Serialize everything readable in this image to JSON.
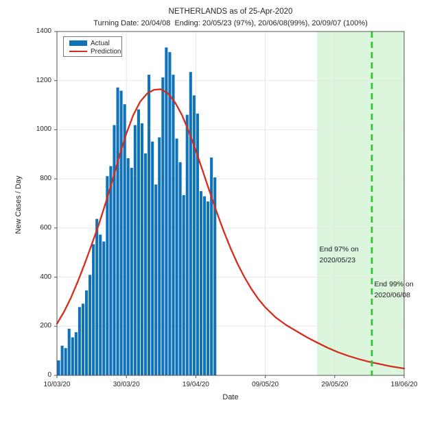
{
  "colors": {
    "bar": "#1072b8",
    "prediction_line": "#d62b1b",
    "region_fill": "#dcf5dd",
    "dashed_line": "#35c435",
    "grid": "#e7e7e7",
    "axis": "#555555",
    "text": "#262626"
  },
  "chart_data": {
    "type": "bar+line",
    "title": "NETHERLANDS as of 25-Apr-2020",
    "subtitle": "Turning Date: 20/04/08  Ending: 20/05/23 (97%), 20/06/08(99%), 20/09/07 (100%)",
    "xlabel": "Date",
    "ylabel": "New Cases / Day",
    "ylim": [
      0,
      1400
    ],
    "yticks": [
      0,
      200,
      400,
      600,
      800,
      1000,
      1200,
      1400
    ],
    "x_day0_date": "2020-03-10",
    "x_total_days": 100,
    "xticks": [
      {
        "day": 0,
        "label": "10/03/20"
      },
      {
        "day": 20,
        "label": "30/03/20"
      },
      {
        "day": 40,
        "label": "19/04/20"
      },
      {
        "day": 60,
        "label": "09/05/20"
      },
      {
        "day": 80,
        "label": "29/05/20"
      },
      {
        "day": 100,
        "label": "18/06/20"
      }
    ],
    "grid": true,
    "legend": {
      "position": "top-left",
      "entries": [
        {
          "label": "Actual",
          "type": "bar",
          "color": "#1072b8"
        },
        {
          "label": "Prediction",
          "type": "line",
          "color": "#d62b1b"
        }
      ]
    },
    "series": [
      {
        "name": "Actual",
        "type": "bar",
        "start_date": "2020-03-10",
        "end_date": "2020-04-24",
        "values": [
          61,
          121,
          111,
          190,
          155,
          176,
          278,
          292,
          346,
          409,
          534,
          637,
          573,
          545,
          811,
          852,
          1019,
          1172,
          1159,
          1104,
          884,
          845,
          1019,
          1083,
          1026,
          904,
          1224,
          952,
          777,
          969,
          1213,
          1335,
          1316,
          1224,
          964,
          868,
          734,
          1061,
          1235,
          1140,
          1066,
          750,
          729,
          708,
          887,
          806
        ]
      },
      {
        "name": "Prediction",
        "type": "line",
        "peak_value": 1165,
        "peak_day": 29,
        "points": [
          [
            0,
            210
          ],
          [
            2,
            258
          ],
          [
            4,
            315
          ],
          [
            6,
            382
          ],
          [
            8,
            455
          ],
          [
            10,
            532
          ],
          [
            12,
            612
          ],
          [
            14,
            700
          ],
          [
            16,
            795
          ],
          [
            18,
            895
          ],
          [
            20,
            985
          ],
          [
            22,
            1060
          ],
          [
            24,
            1115
          ],
          [
            26,
            1148
          ],
          [
            28,
            1163
          ],
          [
            30,
            1165
          ],
          [
            32,
            1148
          ],
          [
            34,
            1112
          ],
          [
            36,
            1060
          ],
          [
            38,
            992
          ],
          [
            40,
            915
          ],
          [
            42,
            832
          ],
          [
            44,
            748
          ],
          [
            46,
            665
          ],
          [
            48,
            588
          ],
          [
            50,
            518
          ],
          [
            52,
            455
          ],
          [
            54,
            400
          ],
          [
            56,
            352
          ],
          [
            58,
            311
          ],
          [
            60,
            277
          ],
          [
            63,
            236
          ],
          [
            66,
            205
          ],
          [
            69,
            180
          ],
          [
            72,
            155
          ],
          [
            75,
            133
          ],
          [
            78,
            112
          ],
          [
            81,
            94
          ],
          [
            84,
            79
          ],
          [
            87,
            66
          ],
          [
            90,
            55
          ],
          [
            93,
            46
          ],
          [
            96,
            37
          ],
          [
            100,
            28
          ]
        ]
      }
    ],
    "shaded_region": {
      "start_day": 74.9,
      "end_day": 100,
      "start_date": "2020-05-23",
      "meaning": "97% end region"
    },
    "dashed_line": {
      "day": 90.7,
      "date": "2020-06-08",
      "meaning": "99% end date"
    },
    "annotations": [
      {
        "lines": [
          "End 97% on",
          "2020/05/23"
        ],
        "day": 75.6,
        "value": 512
      },
      {
        "lines": [
          "End 99% on",
          "2020/06/08"
        ],
        "day": 91.4,
        "value": 372
      }
    ]
  }
}
